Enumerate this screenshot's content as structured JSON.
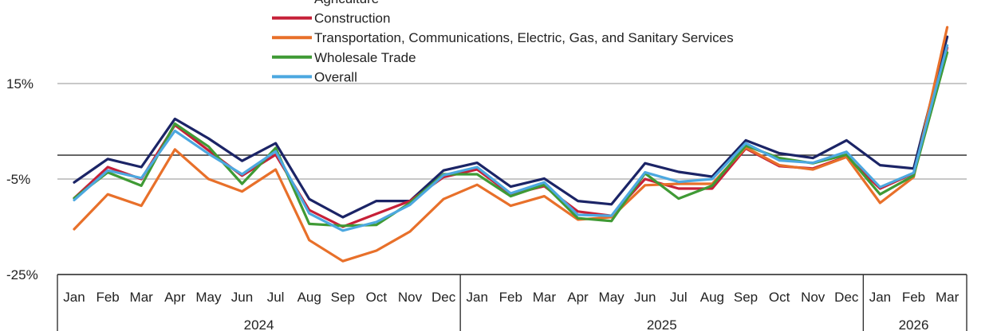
{
  "chart_data": {
    "type": "line",
    "title": "",
    "xlabel": "",
    "ylabel": "",
    "ylim": [
      -25,
      25
    ],
    "yticks": [
      {
        "value": 15,
        "label": "15%"
      },
      {
        "value": -5,
        "label": "-5%"
      },
      {
        "value": -25,
        "label": "-25%"
      }
    ],
    "zero_line": 0,
    "grid": true,
    "legend_position": "top",
    "months": [
      "Jan",
      "Feb",
      "Mar",
      "Apr",
      "May",
      "Jun",
      "Jul",
      "Aug",
      "Sep",
      "Oct",
      "Nov",
      "Dec",
      "Jan",
      "Feb",
      "Mar",
      "Apr",
      "May",
      "Jun",
      "Jul",
      "Aug",
      "Sep",
      "Oct",
      "Nov",
      "Dec",
      "Jan",
      "Feb",
      "Mar"
    ],
    "years": [
      {
        "label": "2024",
        "start": 0,
        "end": 11
      },
      {
        "label": "2025",
        "start": 12,
        "end": 23
      },
      {
        "label": "2026",
        "start": 24,
        "end": 26
      }
    ],
    "series": [
      {
        "name": "Agriculture",
        "color": "#1b2466",
        "values": [
          -5.7,
          -0.8,
          -2.5,
          7.6,
          3.5,
          -1.2,
          2.5,
          -9.2,
          -13.0,
          -9.6,
          -9.6,
          -3.2,
          -1.6,
          -6.6,
          -4.9,
          -9.6,
          -10.3,
          -1.7,
          -3.5,
          -4.5,
          3.1,
          0.4,
          -0.6,
          3.1,
          -2.1,
          -2.8,
          24.8
        ]
      },
      {
        "name": "Construction",
        "color": "#c62038",
        "values": [
          -9.0,
          -2.5,
          -5.0,
          6.3,
          1.0,
          -4.3,
          0.1,
          -11.5,
          -15.0,
          -12.3,
          -9.6,
          -4.6,
          -3.0,
          -8.2,
          -6.5,
          -11.8,
          -12.7,
          -5.0,
          -7.0,
          -7.0,
          1.4,
          -2.3,
          -2.8,
          -0.3,
          -7.0,
          -3.8,
          22.5
        ]
      },
      {
        "name": "Transportation, Communications, Electric, Gas, and Sanitary Services",
        "color": "#e8702a",
        "values": [
          -15.5,
          -8.2,
          -10.6,
          1.2,
          -5.0,
          -7.6,
          -3.0,
          -17.8,
          -22.2,
          -20.0,
          -16.0,
          -9.2,
          -6.2,
          -10.6,
          -8.6,
          -13.5,
          -13.0,
          -6.3,
          -6.0,
          -6.0,
          1.6,
          -2.1,
          -3.0,
          -0.4,
          -10.0,
          -4.6,
          26.8
        ]
      },
      {
        "name": "Wholesale Trade",
        "color": "#3f9a35",
        "values": [
          -9.0,
          -3.6,
          -6.4,
          6.6,
          1.8,
          -6.0,
          1.5,
          -14.4,
          -14.8,
          -14.6,
          -10.0,
          -4.0,
          -4.0,
          -8.6,
          -6.2,
          -13.2,
          -13.8,
          -3.8,
          -9.1,
          -6.4,
          2.0,
          -0.6,
          -1.7,
          0.1,
          -8.2,
          -4.3,
          21.5
        ]
      },
      {
        "name": "Overall",
        "color": "#4ca8e0",
        "values": [
          -9.4,
          -3.2,
          -4.8,
          5.1,
          0.3,
          -4.0,
          0.8,
          -12.2,
          -15.8,
          -14.0,
          -10.4,
          -4.2,
          -2.5,
          -8.0,
          -5.7,
          -12.5,
          -12.7,
          -3.6,
          -5.6,
          -5.0,
          2.5,
          -1.1,
          -1.6,
          0.7,
          -6.7,
          -3.7,
          23.0
        ]
      }
    ]
  }
}
